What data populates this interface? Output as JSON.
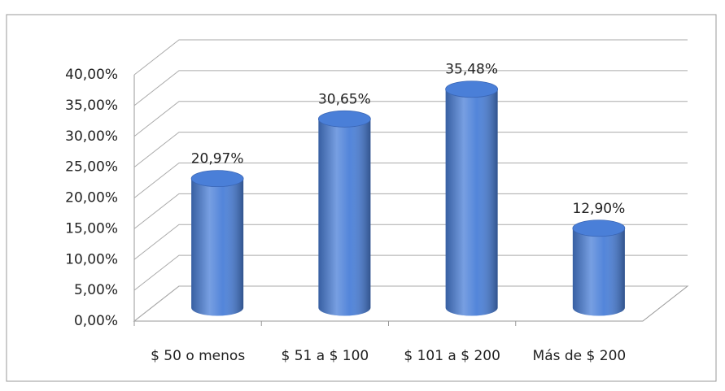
{
  "chart_data": {
    "type": "bar",
    "categories": [
      "$ 50 o menos",
      "$ 51 a $ 100",
      "$ 101 a $ 200",
      "Más de $ 200"
    ],
    "values": [
      20.97,
      30.65,
      35.48,
      12.9
    ],
    "value_labels": [
      "20,97%",
      "30,65%",
      "35,48%",
      "12,90%"
    ],
    "color": "#4a7fd8",
    "ylim": [
      0,
      40
    ],
    "yticks": [
      {
        "value": 0,
        "label": "0,00%"
      },
      {
        "value": 5,
        "label": "5,00%"
      },
      {
        "value": 10,
        "label": "10,00%"
      },
      {
        "value": 15,
        "label": "15,00%"
      },
      {
        "value": 20,
        "label": "20,00%"
      },
      {
        "value": 25,
        "label": "25,00%"
      },
      {
        "value": 30,
        "label": "30,00%"
      },
      {
        "value": 35,
        "label": "35,00%"
      },
      {
        "value": 40,
        "label": "40,00%"
      }
    ],
    "grid": true
  }
}
